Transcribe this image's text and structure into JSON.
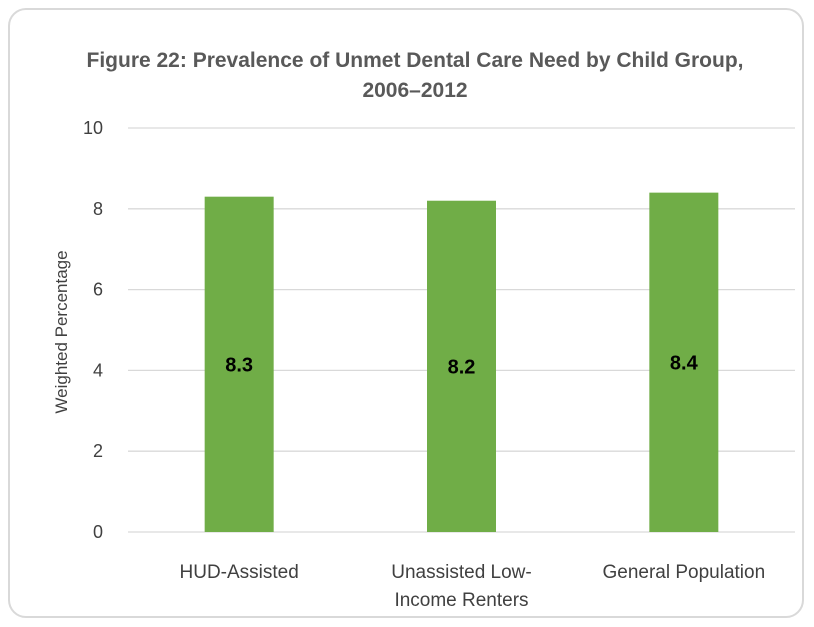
{
  "chart_data": {
    "type": "bar",
    "title": "Figure 22: Prevalence of Unmet Dental Care Need by Child Group, 2006–2012",
    "xlabel": "",
    "ylabel": "Weighted Percentage",
    "categories": [
      "HUD-Assisted",
      "Unassisted Low-Income Renters",
      "General Population"
    ],
    "category_lines": [
      [
        "HUD-Assisted"
      ],
      [
        "Unassisted Low-",
        "Income Renters"
      ],
      [
        "General Population"
      ]
    ],
    "values": [
      8.3,
      8.2,
      8.4
    ],
    "data_labels": [
      "8.3",
      "8.2",
      "8.4"
    ],
    "ylim": [
      0,
      10
    ],
    "yticks": [
      0,
      2,
      4,
      6,
      8,
      10
    ],
    "grid": true,
    "legend": "none",
    "colors": {
      "bar": "#70ad47",
      "grid": "#d9d9d9",
      "text": "#404040"
    }
  }
}
